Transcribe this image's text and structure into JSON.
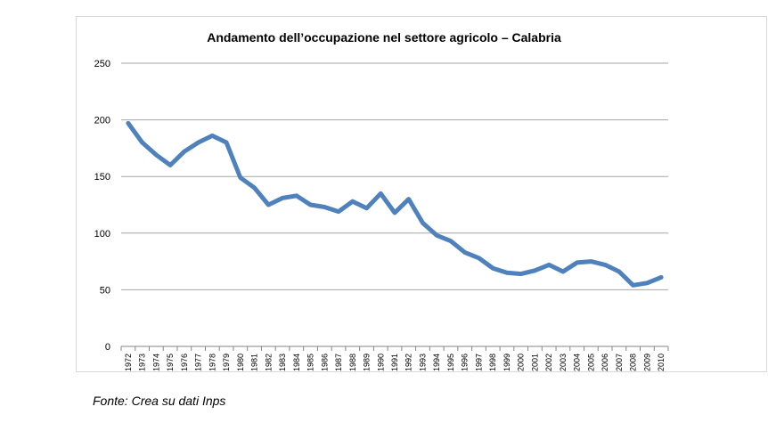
{
  "chart_data": {
    "type": "line",
    "title": "Andamento dell’occupazione nel settore agricolo – Calabria",
    "xlabel": "",
    "ylabel": "",
    "ylim": [
      0,
      250
    ],
    "yticks": [
      "0",
      "50",
      "100",
      "150",
      "200",
      "250"
    ],
    "grid": true,
    "legend": "none",
    "line_color": "#4f81bd",
    "categories": [
      "1972",
      "1973",
      "1974",
      "1975",
      "1976",
      "1977",
      "1978",
      "1979",
      "1980",
      "1981",
      "1982",
      "1983",
      "1984",
      "1985",
      "1986",
      "1987",
      "1988",
      "1989",
      "1990",
      "1991",
      "1992",
      "1993",
      "1994",
      "1995",
      "1996",
      "1997",
      "1998",
      "1999",
      "2000",
      "2001",
      "2002",
      "2003",
      "2004",
      "2005",
      "2006",
      "2007",
      "2008",
      "2009",
      "2010"
    ],
    "series": [
      {
        "values": [
          197,
          180,
          169,
          160,
          172,
          180,
          186,
          180,
          149,
          140,
          125,
          131,
          133,
          125,
          123,
          119,
          128,
          122,
          135,
          118,
          130,
          109,
          98,
          93,
          83,
          78,
          69,
          65,
          64,
          67,
          72,
          66,
          74,
          75,
          72,
          66,
          54,
          56,
          61
        ]
      }
    ]
  },
  "source_note": "Fonte: Crea su dati Inps"
}
